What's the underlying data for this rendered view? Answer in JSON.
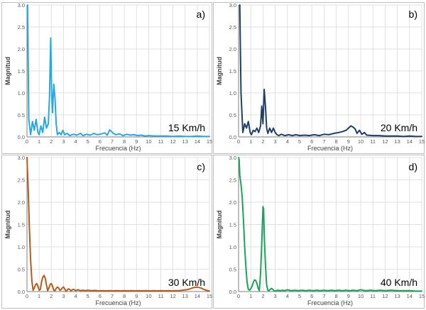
{
  "chart_data": [
    {
      "type": "line",
      "panel_tag": "a)",
      "annotation": "15 Km/h",
      "xlabel": "Frecuencia (Hz)",
      "ylabel": "Magnitud",
      "xlim": [
        0,
        15
      ],
      "ylim": [
        0,
        3.0
      ],
      "xticks": [
        "0",
        "1",
        "2",
        "3",
        "4",
        "5",
        "6",
        "7",
        "8",
        "9",
        "10",
        "11",
        "12",
        "13",
        "14",
        "15"
      ],
      "yticks": [
        "0.0",
        "0.5",
        "1.0",
        "1.5",
        "2.0",
        "2.5",
        "3.0"
      ],
      "grid": true,
      "series": [
        {
          "name": "15 Km/h",
          "color": "#29a8e0",
          "x": [
            0.05,
            0.15,
            0.3,
            0.45,
            0.6,
            0.75,
            0.9,
            1.0,
            1.15,
            1.3,
            1.45,
            1.6,
            1.75,
            1.85,
            1.95,
            2.02,
            2.1,
            2.2,
            2.3,
            2.4,
            2.5,
            2.65,
            2.8,
            2.95,
            3.1,
            3.3,
            3.5,
            3.8,
            4.1,
            4.4,
            4.6,
            4.9,
            5.2,
            5.5,
            5.8,
            6.1,
            6.4,
            6.6,
            6.8,
            6.95,
            7.1,
            7.3,
            7.6,
            7.9,
            8.2,
            8.5,
            8.8,
            9.1,
            9.4,
            9.7,
            10.0,
            10.5,
            11.0,
            11.5,
            12.0,
            12.5,
            13.0,
            13.5,
            14.0,
            14.5,
            15.0
          ],
          "y": [
            3.0,
            0.4,
            0.05,
            0.35,
            0.15,
            0.4,
            0.1,
            0.05,
            0.25,
            0.1,
            0.45,
            0.2,
            0.3,
            0.9,
            2.25,
            1.1,
            0.55,
            1.2,
            0.9,
            0.3,
            0.05,
            0.1,
            0.05,
            0.15,
            0.05,
            0.08,
            0.03,
            0.06,
            0.04,
            0.08,
            0.03,
            0.06,
            0.04,
            0.08,
            0.05,
            0.07,
            0.09,
            0.04,
            0.16,
            0.12,
            0.08,
            0.05,
            0.07,
            0.03,
            0.06,
            0.04,
            0.05,
            0.03,
            0.04,
            0.02,
            0.03,
            0.02,
            0.02,
            0.02,
            0.01,
            0.02,
            0.01,
            0.01,
            0.02,
            0.01,
            0.01
          ]
        }
      ]
    },
    {
      "type": "line",
      "panel_tag": "b)",
      "annotation": "20 Km/h",
      "xlabel": "Frecuencia (Hz)",
      "ylabel": "Magnitud",
      "xlim": [
        0,
        15
      ],
      "ylim": [
        0,
        3.0
      ],
      "xticks": [
        "0",
        "1",
        "2",
        "3",
        "4",
        "5",
        "6",
        "7",
        "8",
        "9",
        "10",
        "11",
        "12",
        "13",
        "14",
        "15"
      ],
      "yticks": [
        "0.0",
        "0.5",
        "1.0",
        "1.5",
        "2.0",
        "2.5",
        "3.0"
      ],
      "grid": true,
      "series": [
        {
          "name": "20 Km/h",
          "color": "#1f3f66",
          "x": [
            0.1,
            0.2,
            0.35,
            0.5,
            0.65,
            0.8,
            0.95,
            1.05,
            1.2,
            1.35,
            1.5,
            1.65,
            1.8,
            1.9,
            2.0,
            2.1,
            2.2,
            2.3,
            2.4,
            2.55,
            2.7,
            2.85,
            3.0,
            3.15,
            3.3,
            3.5,
            3.8,
            4.1,
            4.4,
            4.7,
            5.0,
            5.4,
            5.8,
            6.2,
            6.6,
            7.0,
            7.4,
            7.8,
            8.2,
            8.5,
            8.8,
            9.0,
            9.2,
            9.4,
            9.55,
            9.7,
            9.9,
            10.1,
            10.3,
            10.5,
            11.0,
            11.5,
            12.0,
            12.5,
            13.0,
            13.5,
            14.0,
            14.5,
            15.0
          ],
          "y": [
            3.0,
            1.0,
            0.1,
            0.3,
            0.2,
            0.35,
            0.1,
            0.05,
            0.15,
            0.12,
            0.2,
            0.1,
            0.25,
            0.7,
            0.3,
            1.08,
            0.7,
            0.2,
            0.08,
            0.2,
            0.1,
            0.2,
            0.1,
            0.05,
            0.03,
            0.06,
            0.03,
            0.05,
            0.03,
            0.05,
            0.03,
            0.04,
            0.03,
            0.05,
            0.03,
            0.06,
            0.05,
            0.08,
            0.1,
            0.12,
            0.15,
            0.2,
            0.25,
            0.22,
            0.18,
            0.08,
            0.15,
            0.06,
            0.1,
            0.04,
            0.03,
            0.03,
            0.02,
            0.02,
            0.02,
            0.01,
            0.02,
            0.01,
            0.01
          ]
        }
      ]
    },
    {
      "type": "line",
      "panel_tag": "c)",
      "annotation": "30 Km/h",
      "xlabel": "Frecuencia (Hz)",
      "ylabel": "Magnitud",
      "xlim": [
        0,
        15
      ],
      "ylim": [
        0,
        3.0
      ],
      "xticks": [
        "0",
        "1",
        "2",
        "3",
        "4",
        "5",
        "6",
        "7",
        "8",
        "9",
        "10",
        "11",
        "12",
        "13",
        "14",
        "15"
      ],
      "yticks": [
        "0.0",
        "0.5",
        "1.0",
        "1.5",
        "2.0",
        "2.5",
        "3.0"
      ],
      "grid": true,
      "series": [
        {
          "name": "30 Km/h",
          "color": "#b85a1a",
          "x": [
            0.0,
            0.1,
            0.2,
            0.3,
            0.4,
            0.5,
            0.6,
            0.7,
            0.8,
            0.9,
            1.0,
            1.1,
            1.2,
            1.3,
            1.4,
            1.5,
            1.6,
            1.7,
            1.8,
            1.9,
            2.0,
            2.1,
            2.2,
            2.3,
            2.4,
            2.5,
            2.6,
            2.7,
            2.8,
            2.9,
            3.0,
            3.1,
            3.2,
            3.3,
            3.4,
            3.5,
            3.6,
            3.7,
            3.8,
            3.9,
            4.0,
            4.2,
            4.4,
            4.6,
            4.8,
            5.0,
            5.3,
            5.6,
            5.9,
            6.2,
            6.5,
            6.8,
            7.1,
            7.4,
            7.7,
            8.0,
            8.3,
            8.6,
            8.9,
            9.2,
            9.5,
            9.8,
            10.1,
            10.4,
            10.7,
            11.0,
            11.3,
            11.6,
            11.9,
            12.2,
            12.5,
            12.8,
            13.1,
            13.4,
            13.7,
            14.0,
            14.3,
            14.6,
            15.0
          ],
          "y": [
            3.0,
            2.3,
            1.4,
            0.7,
            0.25,
            0.03,
            0.08,
            0.15,
            0.18,
            0.12,
            0.03,
            0.05,
            0.22,
            0.32,
            0.36,
            0.3,
            0.15,
            0.02,
            0.08,
            0.16,
            0.18,
            0.12,
            0.03,
            0.02,
            0.07,
            0.1,
            0.08,
            0.03,
            0.04,
            0.08,
            0.1,
            0.06,
            0.01,
            0.03,
            0.06,
            0.05,
            0.02,
            0.03,
            0.05,
            0.04,
            0.02,
            0.04,
            0.02,
            0.03,
            0.02,
            0.03,
            0.02,
            0.025,
            0.015,
            0.02,
            0.015,
            0.02,
            0.015,
            0.02,
            0.015,
            0.02,
            0.015,
            0.02,
            0.015,
            0.02,
            0.015,
            0.02,
            0.015,
            0.02,
            0.015,
            0.02,
            0.015,
            0.02,
            0.015,
            0.02,
            0.02,
            0.03,
            0.04,
            0.06,
            0.09,
            0.1,
            0.08,
            0.04,
            0.01
          ]
        }
      ]
    },
    {
      "type": "line",
      "panel_tag": "d)",
      "annotation": "40 Km/h",
      "xlabel": "Frecuencia (Hz)",
      "ylabel": "Magnitud",
      "xlim": [
        0,
        15
      ],
      "ylim": [
        0,
        3.0
      ],
      "xticks": [
        "0",
        "1",
        "2",
        "3",
        "4",
        "5",
        "6",
        "7",
        "8",
        "9",
        "10",
        "11",
        "12",
        "13",
        "14",
        "15"
      ],
      "yticks": [
        "0.0",
        "0.5",
        "1.0",
        "1.5",
        "2.0",
        "2.5",
        "3.0"
      ],
      "grid": true,
      "series": [
        {
          "name": "40 Km/h",
          "color": "#1aa35a",
          "x": [
            0.0,
            0.05,
            0.1,
            0.2,
            0.3,
            0.4,
            0.5,
            0.6,
            0.7,
            0.8,
            0.9,
            1.0,
            1.1,
            1.2,
            1.3,
            1.4,
            1.5,
            1.6,
            1.7,
            1.8,
            1.9,
            2.0,
            2.05,
            2.1,
            2.2,
            2.3,
            2.4,
            2.5,
            2.6,
            2.7,
            2.8,
            2.9,
            3.0,
            3.2,
            3.4,
            3.6,
            3.8,
            4.0,
            4.3,
            4.6,
            4.9,
            5.2,
            5.5,
            5.8,
            6.1,
            6.4,
            6.7,
            7.0,
            7.3,
            7.6,
            7.9,
            8.2,
            8.5,
            8.8,
            9.1,
            9.4,
            9.7,
            10.0,
            10.4,
            10.8,
            11.2,
            11.6,
            12.0,
            12.5,
            13.0,
            13.5,
            14.0,
            14.5,
            15.0
          ],
          "y": [
            3.0,
            2.95,
            2.6,
            2.4,
            2.1,
            1.6,
            1.0,
            0.55,
            0.2,
            0.05,
            0.03,
            0.06,
            0.12,
            0.2,
            0.26,
            0.25,
            0.18,
            0.08,
            0.02,
            0.4,
            1.1,
            1.9,
            1.85,
            1.3,
            0.6,
            0.15,
            0.03,
            0.02,
            0.05,
            0.07,
            0.05,
            0.02,
            0.01,
            0.03,
            0.02,
            0.03,
            0.02,
            0.04,
            0.02,
            0.03,
            0.02,
            0.03,
            0.02,
            0.03,
            0.02,
            0.03,
            0.02,
            0.03,
            0.02,
            0.03,
            0.02,
            0.03,
            0.02,
            0.03,
            0.02,
            0.03,
            0.02,
            0.04,
            0.02,
            0.03,
            0.02,
            0.03,
            0.02,
            0.03,
            0.02,
            0.02,
            0.02,
            0.01,
            0.01
          ]
        }
      ]
    }
  ]
}
